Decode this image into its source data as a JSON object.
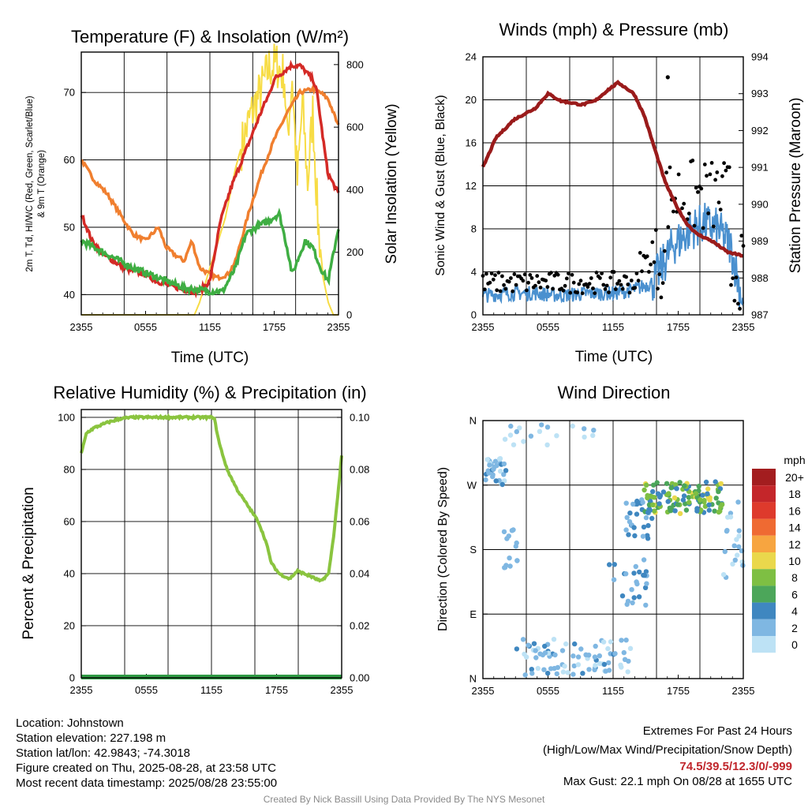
{
  "charts": {
    "temp": {
      "title": "Temperature (F) & Insolation (W/m²)",
      "ylabel_left_line1": "2m T, Td, HI/WC (Red, Green, Scarlet/Blue)",
      "ylabel_left_line2": "& 9m T (Orange)",
      "ylabel_right": "Solar Insolation (Yellow)",
      "xlabel": "Time (UTC)",
      "left_ticks": [
        "40",
        "50",
        "60",
        "70"
      ],
      "right_ticks": [
        "0",
        "200",
        "400",
        "600",
        "800"
      ],
      "x_ticks": [
        "2355",
        "0555",
        "1155",
        "1755",
        "2355"
      ]
    },
    "wind": {
      "title": "Winds (mph) & Pressure (mb)",
      "ylabel_left": "Sonic Wind & Gust (Blue, Black)",
      "ylabel_right": "Station Pressure (Maroon)",
      "xlabel": "Time (UTC)",
      "left_ticks": [
        "0",
        "4",
        "8",
        "12",
        "16",
        "20",
        "24"
      ],
      "right_ticks": [
        "987",
        "988",
        "989",
        "990",
        "991",
        "992",
        "993",
        "994"
      ],
      "x_ticks": [
        "2355",
        "0555",
        "1155",
        "1755",
        "2355"
      ]
    },
    "rh": {
      "title": "Relative Humidity (%) & Precipitation (in)",
      "ylabel_left": "Percent & Precipitation",
      "left_ticks": [
        "0",
        "20",
        "40",
        "60",
        "80",
        "100"
      ],
      "right_ticks": [
        "0.00",
        "0.02",
        "0.04",
        "0.06",
        "0.08",
        "0.10"
      ],
      "x_ticks": [
        "2355",
        "0555",
        "1155",
        "1755",
        "2355"
      ]
    },
    "dir": {
      "title": "Wind Direction",
      "ylabel_left": "Direction (Colored By Speed)",
      "dir_ticks": [
        "N",
        "E",
        "S",
        "W",
        "N"
      ],
      "x_ticks": [
        "2355",
        "0555",
        "1155",
        "1755",
        "2355"
      ],
      "legend_title": "mph",
      "legend_labels": [
        "20+",
        "18",
        "16",
        "14",
        "12",
        "10",
        "8",
        "6",
        "4",
        "2",
        "0"
      ],
      "legend_colors": [
        "#a31d1f",
        "#c4262a",
        "#de3a2c",
        "#ef6a32",
        "#f7a540",
        "#ead84c",
        "#7ebf43",
        "#4ca65a",
        "#3f87c0",
        "#7fb7e2",
        "#bde2f5"
      ]
    }
  },
  "chart_data": [
    {
      "type": "line",
      "title": "Temperature (F) & Insolation (W/m²)",
      "xlabel": "Time (UTC)",
      "ylabel": "2m T, Td, HI/WC (Red, Green, Scarlet/Blue) & 9m T (Orange)",
      "y2label": "Solar Insolation (Yellow)",
      "x": [
        "2355",
        "0155",
        "0355",
        "0555",
        "0755",
        "0955",
        "1155",
        "1355",
        "1555",
        "1755",
        "1955",
        "2155",
        "2355"
      ],
      "ylim": [
        37,
        76
      ],
      "y2lim": [
        0,
        840
      ],
      "grid": true,
      "series": [
        {
          "name": "2m T",
          "color": "#d42a26",
          "axis": "left",
          "values": [
            52,
            47,
            44,
            43,
            41,
            40.5,
            46,
            60,
            69,
            73,
            74,
            71,
            55
          ]
        },
        {
          "name": "9m T",
          "color": "#f07f2f",
          "axis": "left",
          "values": [
            60,
            55,
            48,
            48,
            45,
            43,
            47,
            60,
            68,
            70,
            70,
            70,
            65
          ]
        },
        {
          "name": "HI/WC",
          "color": "#c82a22",
          "axis": "left",
          "values": [
            52,
            47,
            44,
            43,
            41,
            40.5,
            46,
            59,
            69,
            73,
            74,
            71,
            55
          ]
        },
        {
          "name": "Td",
          "color": "#3fae43",
          "axis": "left",
          "values": [
            48,
            46,
            44,
            43,
            41,
            40,
            45,
            49,
            52,
            46,
            48,
            43,
            50
          ]
        },
        {
          "name": "Solar Insolation",
          "color": "#f7dc45",
          "axis": "right",
          "values": [
            0,
            0,
            0,
            0,
            0,
            0,
            120,
            560,
            720,
            800,
            450,
            150,
            0
          ]
        }
      ]
    },
    {
      "type": "line",
      "title": "Winds (mph) & Pressure (mb)",
      "xlabel": "Time (UTC)",
      "ylabel": "Sonic Wind & Gust (Blue, Black)",
      "y2label": "Station Pressure (Maroon)",
      "x": [
        "2355",
        "0155",
        "0355",
        "0555",
        "0755",
        "0955",
        "1155",
        "1355",
        "1555",
        "1755",
        "1955",
        "2155",
        "2355"
      ],
      "ylim": [
        0,
        24
      ],
      "y2lim": [
        987,
        994
      ],
      "grid": true,
      "series": [
        {
          "name": "Sonic Wind",
          "color": "#4a90cf",
          "axis": "left",
          "values": [
            1.5,
            2,
            2,
            1.5,
            2,
            2,
            2,
            3,
            6,
            8,
            7.5,
            7,
            1
          ]
        },
        {
          "name": "Gust",
          "color": "#000000",
          "axis": "left",
          "values": [
            3,
            3.5,
            3,
            3,
            3,
            3,
            3,
            5,
            10,
            12,
            13,
            12,
            2
          ]
        },
        {
          "name": "Station Pressure",
          "color": "#9a1b1b",
          "axis": "right",
          "values": [
            991.3,
            992.4,
            992.8,
            993.0,
            992.8,
            993.0,
            993.3,
            992.5,
            991.0,
            989.5,
            989.0,
            988.7,
            988.6
          ]
        }
      ]
    },
    {
      "type": "line",
      "title": "Relative Humidity (%) & Precipitation (in)",
      "ylabel": "Percent & Precipitation",
      "x": [
        "2355",
        "0155",
        "0355",
        "0555",
        "0755",
        "0955",
        "1155",
        "1355",
        "1555",
        "1755",
        "1955",
        "2155",
        "2355"
      ],
      "ylim": [
        0,
        100
      ],
      "y2lim": [
        0,
        0.1
      ],
      "grid": true,
      "series": [
        {
          "name": "Relative Humidity",
          "color": "#8ac43f",
          "axis": "left",
          "values": [
            86,
            98,
            100,
            100,
            100,
            100,
            100,
            78,
            60,
            38,
            40,
            37,
            85
          ]
        },
        {
          "name": "Precipitation",
          "color": "#2e9a44",
          "axis": "right",
          "values": [
            0,
            0,
            0,
            0,
            0,
            0,
            0,
            0,
            0,
            0,
            0,
            0,
            0
          ]
        }
      ]
    },
    {
      "type": "scatter",
      "title": "Wind Direction",
      "ylabel": "Direction (Colored By Speed)",
      "x": [
        "2355",
        "0155",
        "0355",
        "0555",
        "0755",
        "0955",
        "1155",
        "1355",
        "1555",
        "1755",
        "1955",
        "2155",
        "2355"
      ],
      "ylim": [
        "N",
        "E",
        "S",
        "W",
        "N"
      ],
      "grid": true,
      "series": [
        {
          "name": "Direction",
          "direction_deg": [
            300,
            310,
            30,
            20,
            340,
            30,
            200,
            230,
            275,
            280,
            285,
            270,
            180
          ],
          "speed_mph": [
            2,
            2,
            1,
            2,
            2,
            2,
            2,
            3,
            7,
            8,
            9,
            7,
            2
          ]
        }
      ]
    }
  ],
  "footer": {
    "left": [
      "Location: Johnstown",
      "Station elevation: 227.198 m",
      "Station lat/lon: 42.9843; -74.3018",
      "Figure created on Thu, 2025-08-28, at 23:58 UTC",
      "Most recent data timestamp: 2025/08/28 23:55:00"
    ],
    "right_title1": "Extremes For Past 24 Hours",
    "right_title2": "(High/Low/Max Wind/Precipitation/Snow Depth)",
    "extremes": "74.5/39.5/12.3/0/-999",
    "max_gust": "Max Gust: 22.1 mph On 08/28 at 1655 UTC",
    "credit": "Created By Nick Bassill Using Data Provided By The NYS Mesonet"
  }
}
